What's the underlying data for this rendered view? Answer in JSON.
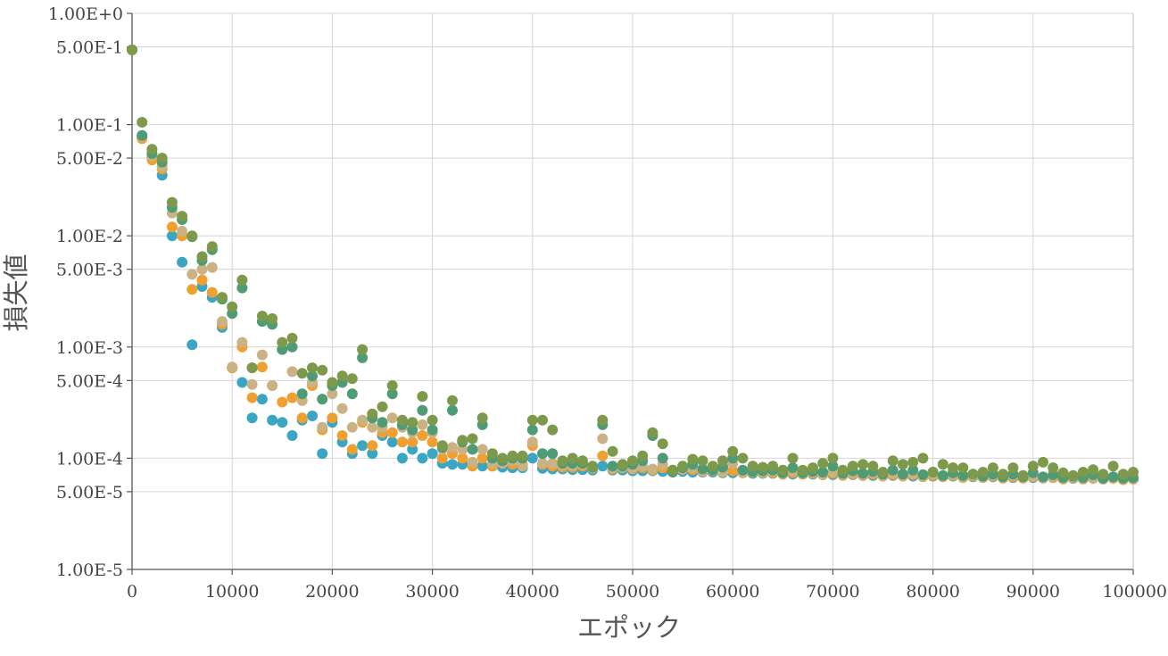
{
  "chart_data": {
    "type": "scatter",
    "title": "",
    "xlabel": "エポック",
    "ylabel": "損失値",
    "xlim": [
      0,
      100000
    ],
    "ylim": [
      1e-05,
      1
    ],
    "yscale": "log",
    "grid": true,
    "legend": "none",
    "x_ticks": [
      0,
      10000,
      20000,
      30000,
      40000,
      50000,
      60000,
      70000,
      80000,
      90000,
      100000
    ],
    "x_tick_labels": [
      "0",
      "10000",
      "20000",
      "30000",
      "40000",
      "50000",
      "60000",
      "70000",
      "80000",
      "90000",
      "100000"
    ],
    "y_ticks": [
      1,
      0.5,
      0.1,
      0.05,
      0.01,
      0.005,
      0.001,
      0.0005,
      0.0001,
      5e-05,
      1e-05
    ],
    "y_tick_labels": [
      "1.00E+0",
      "5.00E-1",
      "1.00E-1",
      "5.00E-2",
      "1.00E-2",
      "5.00E-3",
      "1.00E-3",
      "5.00E-4",
      "1.00E-4",
      "5.00E-5",
      "1.00E-5"
    ],
    "series": [
      {
        "color": "#3aa6c4",
        "x": [
          0,
          1000,
          2000,
          3000,
          4000,
          5000,
          6000,
          7000,
          8000,
          9000,
          10000,
          11000,
          12000,
          13000,
          14000,
          15000,
          16000,
          17000,
          18000,
          19000,
          20000,
          21000,
          22000,
          23000,
          24000,
          25000,
          26000,
          27000,
          28000,
          29000,
          30000,
          31000,
          32000,
          33000,
          34000,
          35000,
          36000,
          37000,
          38000,
          39000,
          40000,
          41000,
          42000,
          43000,
          44000,
          45000,
          46000,
          47000,
          48000,
          49000,
          50000,
          51000,
          52000,
          53000,
          54000,
          55000,
          56000,
          57000,
          58000,
          59000,
          60000,
          61000,
          62000,
          63000,
          64000,
          65000,
          66000,
          67000,
          68000,
          69000,
          70000,
          71000,
          72000,
          73000,
          74000,
          75000,
          76000,
          77000,
          78000,
          79000,
          80000,
          81000,
          82000,
          83000,
          84000,
          85000,
          86000,
          87000,
          88000,
          89000,
          90000,
          91000,
          92000,
          93000,
          94000,
          95000,
          96000,
          97000,
          98000,
          99000,
          100000
        ],
        "y": [
          0.47,
          0.075,
          0.05,
          0.035,
          0.01,
          0.0058,
          0.00105,
          0.0035,
          0.0028,
          0.0015,
          0.00065,
          0.00048,
          0.00023,
          0.00034,
          0.00022,
          0.00021,
          0.00016,
          0.00022,
          0.00024,
          0.00011,
          0.00021,
          0.00014,
          0.00011,
          0.00013,
          0.00011,
          0.00016,
          0.00014,
          0.0001,
          0.00012,
          0.0001,
          0.00011,
          9e-05,
          8.8e-05,
          8.8e-05,
          8.6e-05,
          8.5e-05,
          8.5e-05,
          8.3e-05,
          8.2e-05,
          8.2e-05,
          0.0001,
          8.1e-05,
          8e-05,
          8e-05,
          7.9e-05,
          7.9e-05,
          7.8e-05,
          8.5e-05,
          7.8e-05,
          7.8e-05,
          7.7e-05,
          7.7e-05,
          7.7e-05,
          7.6e-05,
          7.6e-05,
          7.6e-05,
          7.5e-05,
          7.5e-05,
          7.5e-05,
          7.4e-05,
          7.4e-05,
          7.4e-05,
          7.3e-05,
          7.3e-05,
          7.3e-05,
          7.2e-05,
          7.2e-05,
          7.2e-05,
          7.2e-05,
          7.1e-05,
          7.1e-05,
          7.1e-05,
          7.1e-05,
          7e-05,
          7e-05,
          7e-05,
          7e-05,
          7e-05,
          6.9e-05,
          6.9e-05,
          6.9e-05,
          6.9e-05,
          6.9e-05,
          6.8e-05,
          6.8e-05,
          6.8e-05,
          6.8e-05,
          6.8e-05,
          6.7e-05,
          6.7e-05,
          6.7e-05,
          6.7e-05,
          6.7e-05,
          6.6e-05,
          6.6e-05,
          6.6e-05,
          6.6e-05,
          6.6e-05,
          6.6e-05,
          6.5e-05,
          6.5e-05
        ]
      },
      {
        "color": "#f0a030",
        "x": [
          0,
          1000,
          2000,
          3000,
          4000,
          5000,
          6000,
          7000,
          8000,
          9000,
          10000,
          11000,
          12000,
          13000,
          14000,
          15000,
          16000,
          17000,
          18000,
          19000,
          20000,
          21000,
          22000,
          23000,
          24000,
          25000,
          26000,
          27000,
          28000,
          29000,
          30000,
          31000,
          32000,
          33000,
          34000,
          35000,
          36000,
          37000,
          38000,
          39000,
          40000,
          41000,
          42000,
          43000,
          44000,
          45000,
          46000,
          47000,
          48000,
          49000,
          50000,
          51000,
          52000,
          53000,
          54000,
          55000,
          56000,
          57000,
          58000,
          59000,
          60000,
          61000,
          62000,
          63000,
          64000,
          65000,
          66000,
          67000,
          68000,
          69000,
          70000,
          71000,
          72000,
          73000,
          74000,
          75000,
          76000,
          77000,
          78000,
          79000,
          80000,
          81000,
          82000,
          83000,
          84000,
          85000,
          86000,
          87000,
          88000,
          89000,
          90000,
          91000,
          92000,
          93000,
          94000,
          95000,
          96000,
          97000,
          98000,
          99000,
          100000
        ],
        "y": [
          0.47,
          0.075,
          0.048,
          0.04,
          0.012,
          0.01,
          0.0033,
          0.004,
          0.0031,
          0.0016,
          0.00065,
          0.001,
          0.00035,
          0.00066,
          0.00045,
          0.00032,
          0.00035,
          0.00023,
          0.00045,
          0.00018,
          0.00023,
          0.00016,
          0.00012,
          0.00021,
          0.00013,
          0.00017,
          0.00017,
          0.00014,
          0.00014,
          0.00016,
          0.00014,
          0.0001,
          0.00011,
          0.0001,
          8.5e-05,
          0.0001,
          8.5e-05,
          9.5e-05,
          8.8e-05,
          8.8e-05,
          0.00013,
          8.8e-05,
          8.5e-05,
          8.3e-05,
          8.3e-05,
          8.5e-05,
          8.1e-05,
          0.000105,
          8e-05,
          8.2e-05,
          8e-05,
          8.2e-05,
          7.8e-05,
          8.2e-05,
          7.7e-05,
          7.9e-05,
          7.9e-05,
          7.6e-05,
          7.7e-05,
          7.5e-05,
          7.7e-05,
          7.4e-05,
          7.5e-05,
          7.4e-05,
          7.4e-05,
          7.2e-05,
          7.4e-05,
          7.2e-05,
          7.3e-05,
          7.1e-05,
          7.3e-05,
          7e-05,
          7.2e-05,
          7e-05,
          7.2e-05,
          6.9e-05,
          7.1e-05,
          6.9e-05,
          7.1e-05,
          6.8e-05,
          7e-05,
          6.8e-05,
          7e-05,
          6.7e-05,
          6.9e-05,
          6.7e-05,
          6.9e-05,
          6.6e-05,
          6.8e-05,
          6.6e-05,
          6.8e-05,
          6.6e-05,
          6.7e-05,
          6.5e-05,
          6.7e-05,
          6.5e-05,
          6.6e-05,
          6.5e-05,
          6.6e-05,
          6.4e-05,
          6.5e-05
        ]
      },
      {
        "color": "#cbb285",
        "x": [
          0,
          1000,
          2000,
          3000,
          4000,
          5000,
          6000,
          7000,
          8000,
          9000,
          10000,
          11000,
          12000,
          13000,
          14000,
          15000,
          16000,
          17000,
          18000,
          19000,
          20000,
          21000,
          22000,
          23000,
          24000,
          25000,
          26000,
          27000,
          28000,
          29000,
          30000,
          31000,
          32000,
          33000,
          34000,
          35000,
          36000,
          37000,
          38000,
          39000,
          40000,
          41000,
          42000,
          43000,
          44000,
          45000,
          46000,
          47000,
          48000,
          49000,
          50000,
          51000,
          52000,
          53000,
          54000,
          55000,
          56000,
          57000,
          58000,
          59000,
          60000,
          61000,
          62000,
          63000,
          64000,
          65000,
          66000,
          67000,
          68000,
          69000,
          70000,
          71000,
          72000,
          73000,
          74000,
          75000,
          76000,
          77000,
          78000,
          79000,
          80000,
          81000,
          82000,
          83000,
          84000,
          85000,
          86000,
          87000,
          88000,
          89000,
          90000,
          91000,
          92000,
          93000,
          94000,
          95000,
          96000,
          97000,
          98000,
          99000,
          100000
        ],
        "y": [
          0.47,
          0.078,
          0.052,
          0.042,
          0.016,
          0.011,
          0.0045,
          0.005,
          0.0052,
          0.0017,
          0.00066,
          0.0011,
          0.00046,
          0.00085,
          0.00045,
          0.00095,
          0.0006,
          0.00033,
          0.00048,
          0.00019,
          0.00038,
          0.00028,
          0.00019,
          0.00022,
          0.00019,
          0.00019,
          0.00023,
          0.00019,
          0.00017,
          0.0002,
          0.00017,
          0.00012,
          0.000125,
          0.00012,
          9.2e-05,
          0.00012,
          9e-05,
          9e-05,
          9.5e-05,
          8.5e-05,
          0.00014,
          9e-05,
          9e-05,
          8.7e-05,
          8.6e-05,
          8.8e-05,
          8.2e-05,
          0.00015,
          8.2e-05,
          8.3e-05,
          8.1e-05,
          8.5e-05,
          8e-05,
          8.8e-05,
          7.8e-05,
          8e-05,
          8.2e-05,
          7.7e-05,
          7.9e-05,
          7.6e-05,
          9e-05,
          7.5e-05,
          7.7e-05,
          7.5e-05,
          7.6e-05,
          7.3e-05,
          7.7e-05,
          7.3e-05,
          7.5e-05,
          7.2e-05,
          7.6e-05,
          7.1e-05,
          7.4e-05,
          7.1e-05,
          7.4e-05,
          7e-05,
          7.3e-05,
          7e-05,
          7.3e-05,
          6.9e-05,
          7.2e-05,
          6.9e-05,
          7.1e-05,
          6.8e-05,
          7e-05,
          6.8e-05,
          7e-05,
          6.7e-05,
          7e-05,
          6.7e-05,
          6.9e-05,
          6.6e-05,
          6.8e-05,
          6.6e-05,
          6.8e-05,
          6.6e-05,
          6.7e-05,
          6.5e-05,
          6.7e-05,
          6.5e-05,
          6.6e-05
        ]
      },
      {
        "color": "#4f9b75",
        "x": [
          0,
          1000,
          2000,
          3000,
          4000,
          5000,
          6000,
          7000,
          8000,
          9000,
          10000,
          11000,
          12000,
          13000,
          14000,
          15000,
          16000,
          17000,
          18000,
          19000,
          20000,
          21000,
          22000,
          23000,
          24000,
          25000,
          26000,
          27000,
          28000,
          29000,
          30000,
          31000,
          32000,
          33000,
          34000,
          35000,
          36000,
          37000,
          38000,
          39000,
          40000,
          41000,
          42000,
          43000,
          44000,
          45000,
          46000,
          47000,
          48000,
          49000,
          50000,
          51000,
          52000,
          53000,
          54000,
          55000,
          56000,
          57000,
          58000,
          59000,
          60000,
          61000,
          62000,
          63000,
          64000,
          65000,
          66000,
          67000,
          68000,
          69000,
          70000,
          71000,
          72000,
          73000,
          74000,
          75000,
          76000,
          77000,
          78000,
          79000,
          80000,
          81000,
          82000,
          83000,
          84000,
          85000,
          86000,
          87000,
          88000,
          89000,
          90000,
          91000,
          92000,
          93000,
          94000,
          95000,
          96000,
          97000,
          98000,
          99000,
          100000
        ],
        "y": [
          0.47,
          0.08,
          0.055,
          0.046,
          0.018,
          0.014,
          0.0098,
          0.006,
          0.0075,
          0.0027,
          0.002,
          0.0034,
          0.00065,
          0.0017,
          0.0016,
          0.00095,
          0.001,
          0.00038,
          0.00055,
          0.00034,
          0.00045,
          0.00048,
          0.00038,
          0.0008,
          0.00023,
          0.00021,
          0.00038,
          0.0002,
          0.00018,
          0.00027,
          0.00018,
          0.000125,
          0.00027,
          0.00014,
          0.00012,
          0.0002,
          0.0001,
          9.5e-05,
          0.0001,
          0.0001,
          0.00018,
          0.00011,
          0.00011,
          9e-05,
          9e-05,
          9e-05,
          8.3e-05,
          0.0002,
          8.5e-05,
          8.5e-05,
          8.8e-05,
          9.5e-05,
          0.00016,
          0.0001,
          7.5e-05,
          8.2e-05,
          8.8e-05,
          8e-05,
          7.8e-05,
          8.3e-05,
          0.0001,
          7.8e-05,
          7.6e-05,
          7.7e-05,
          7.8e-05,
          7.4e-05,
          8.2e-05,
          7.4e-05,
          7.6e-05,
          7.5e-05,
          8.5e-05,
          7.3e-05,
          7.7e-05,
          7.3e-05,
          7.6e-05,
          7.2e-05,
          7.8e-05,
          7.2e-05,
          7.8e-05,
          7.1e-05,
          7.5e-05,
          7e-05,
          7.4e-05,
          7e-05,
          7.2e-05,
          6.9e-05,
          7.2e-05,
          6.8e-05,
          7.2e-05,
          6.8e-05,
          7.4e-05,
          6.8e-05,
          7.1e-05,
          6.7e-05,
          6.9e-05,
          6.7e-05,
          7.1e-05,
          6.6e-05,
          6.8e-05,
          6.6e-05,
          6.7e-05
        ]
      },
      {
        "color": "#7d9a4c",
        "x": [
          0,
          1000,
          2000,
          3000,
          4000,
          5000,
          6000,
          7000,
          8000,
          9000,
          10000,
          11000,
          12000,
          13000,
          14000,
          15000,
          16000,
          17000,
          18000,
          19000,
          20000,
          21000,
          22000,
          23000,
          24000,
          25000,
          26000,
          27000,
          28000,
          29000,
          30000,
          31000,
          32000,
          33000,
          34000,
          35000,
          36000,
          37000,
          38000,
          39000,
          40000,
          41000,
          42000,
          43000,
          44000,
          45000,
          46000,
          47000,
          48000,
          49000,
          50000,
          51000,
          52000,
          53000,
          54000,
          55000,
          56000,
          57000,
          58000,
          59000,
          60000,
          61000,
          62000,
          63000,
          64000,
          65000,
          66000,
          67000,
          68000,
          69000,
          70000,
          71000,
          72000,
          73000,
          74000,
          75000,
          76000,
          77000,
          78000,
          79000,
          80000,
          81000,
          82000,
          83000,
          84000,
          85000,
          86000,
          87000,
          88000,
          89000,
          90000,
          91000,
          92000,
          93000,
          94000,
          95000,
          96000,
          97000,
          98000,
          99000,
          100000
        ],
        "y": [
          0.47,
          0.105,
          0.06,
          0.05,
          0.02,
          0.015,
          0.01,
          0.0065,
          0.008,
          0.0028,
          0.0023,
          0.004,
          0.00065,
          0.0019,
          0.0018,
          0.0011,
          0.0012,
          0.00058,
          0.00065,
          0.00062,
          0.00048,
          0.00055,
          0.00052,
          0.00095,
          0.00025,
          0.00029,
          0.00045,
          0.00022,
          0.00021,
          0.00036,
          0.00022,
          0.00013,
          0.00033,
          0.000145,
          0.00015,
          0.00023,
          0.00011,
          0.0001,
          0.000105,
          0.000105,
          0.00022,
          0.00022,
          0.00018,
          9.5e-05,
          0.0001,
          9.5e-05,
          8.5e-05,
          0.00022,
          0.000115,
          8.8e-05,
          9.5e-05,
          0.000105,
          0.00017,
          0.000135,
          7.8e-05,
          8.5e-05,
          9.8e-05,
          9.5e-05,
          8.5e-05,
          9.5e-05,
          0.000115,
          0.0001,
          8.5e-05,
          8.3e-05,
          8.5e-05,
          7.8e-05,
          0.0001,
          7.8e-05,
          8.2e-05,
          9e-05,
          0.0001,
          7.8e-05,
          8.5e-05,
          8.8e-05,
          8.5e-05,
          7.5e-05,
          9.5e-05,
          8.8e-05,
          9.2e-05,
          0.0001,
          7.5e-05,
          8.8e-05,
          8.2e-05,
          8.2e-05,
          7.2e-05,
          7.5e-05,
          8.2e-05,
          7.2e-05,
          8.2e-05,
          7e-05,
          8.5e-05,
          9.2e-05,
          8.2e-05,
          7.4e-05,
          7e-05,
          7.5e-05,
          7.9e-05,
          7.2e-05,
          8.5e-05,
          7.2e-05,
          7.5e-05
        ]
      }
    ]
  }
}
